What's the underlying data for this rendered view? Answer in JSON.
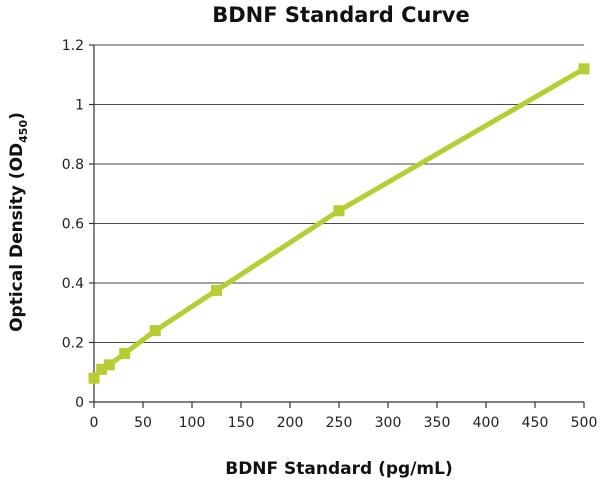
{
  "chart_data": {
    "type": "line",
    "title": "BDNF Standard Curve",
    "xlabel": "BDNF Standard (pg/mL)",
    "ylabel": {
      "main": "Optical Density (OD",
      "subscript": "450",
      "close": ")"
    },
    "xlim": [
      0,
      500
    ],
    "ylim": [
      0,
      1.2
    ],
    "x_ticks": [
      "0",
      "50",
      "100",
      "150",
      "200",
      "250",
      "300",
      "350",
      "400",
      "450",
      "500"
    ],
    "y_ticks": [
      "0",
      "0.2",
      "0.4",
      "0.6",
      "0.8",
      "1",
      "1.2"
    ],
    "grid": "horizontal",
    "series": [
      {
        "color": "#b8cd34",
        "marker": "square",
        "x": [
          0,
          7.8,
          15.6,
          31.3,
          62.5,
          125,
          250,
          500
        ],
        "y": [
          0.08,
          0.11,
          0.125,
          0.163,
          0.24,
          0.375,
          0.643,
          1.12
        ]
      }
    ]
  }
}
